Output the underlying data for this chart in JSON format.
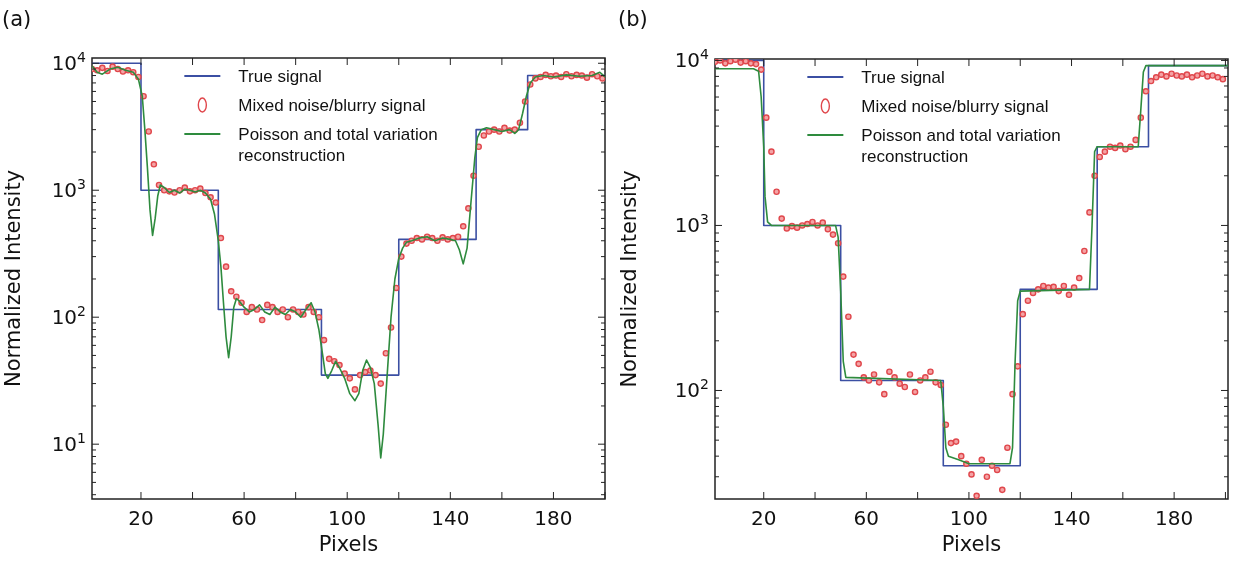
{
  "chart_data": [
    {
      "type": "line",
      "title": "(a)",
      "xlabel": "Pixels",
      "ylabel": "Normalized Intensity",
      "log": "y",
      "legend": "top",
      "grid": false,
      "xlim": [
        1,
        200
      ],
      "xticks": [
        20,
        {
          "value": 40,
          "label": null
        },
        60,
        {
          "value": 80,
          "label": null
        },
        100,
        {
          "value": 120,
          "label": null
        },
        140,
        {
          "value": 160,
          "label": null
        },
        180,
        {
          "value": 200,
          "label": null
        }
      ],
      "ylim": [
        3.7,
        11000
      ],
      "yticks": [
        {
          "value": 4,
          "label": null
        },
        {
          "value": 5,
          "label": null
        },
        {
          "value": 6,
          "label": null
        },
        {
          "value": 7,
          "label": null
        },
        {
          "value": 8,
          "label": null
        },
        {
          "value": 9,
          "label": null
        },
        {
          "value": 10,
          "label": "10$^{1}$"
        },
        {
          "value": 20,
          "label": null
        },
        {
          "value": 30,
          "label": null
        },
        {
          "value": 40,
          "label": null
        },
        {
          "value": 50,
          "label": null
        },
        {
          "value": 60,
          "label": null
        },
        {
          "value": 70,
          "label": null
        },
        {
          "value": 80,
          "label": null
        },
        {
          "value": 90,
          "label": null
        },
        {
          "value": 100,
          "label": "10$^{2}$"
        },
        {
          "value": 200,
          "label": null
        },
        {
          "value": 300,
          "label": null
        },
        {
          "value": 400,
          "label": null
        },
        {
          "value": 500,
          "label": null
        },
        {
          "value": 600,
          "label": null
        },
        {
          "value": 700,
          "label": null
        },
        {
          "value": 800,
          "label": null
        },
        {
          "value": 900,
          "label": null
        },
        {
          "value": 1000,
          "label": "10$^{3}$"
        },
        {
          "value": 2000,
          "label": null
        },
        {
          "value": 3000,
          "label": null
        },
        {
          "value": 4000,
          "label": null
        },
        {
          "value": 5000,
          "label": null
        },
        {
          "value": 6000,
          "label": null
        },
        {
          "value": 7000,
          "label": null
        },
        {
          "value": 8000,
          "label": null
        },
        {
          "value": 9000,
          "label": null
        },
        {
          "value": 10000,
          "label": "10$^{4}$"
        }
      ],
      "series": [
        {
          "name": "True signal",
          "type": "step",
          "color": "#3b4fa3",
          "line_style": "solid",
          "x": [
            1,
            20,
            50,
            90,
            120,
            150,
            170,
            200
          ],
          "values": [
            10000,
            1000,
            115,
            35,
            410,
            3000,
            8000,
            8000
          ]
        },
        {
          "name": "Mixed noise/blurry signal",
          "type": "scatter",
          "color": "#e0474c",
          "marker": "circle",
          "x": [
            1,
            3,
            5,
            7,
            9,
            11,
            13,
            15,
            17,
            19,
            21,
            23,
            25,
            27,
            29,
            31,
            33,
            35,
            37,
            39,
            41,
            43,
            45,
            47,
            49,
            51,
            53,
            55,
            57,
            59,
            61,
            63,
            65,
            67,
            69,
            71,
            73,
            75,
            77,
            79,
            81,
            83,
            85,
            87,
            89,
            91,
            93,
            95,
            97,
            99,
            101,
            103,
            105,
            107,
            109,
            111,
            113,
            115,
            117,
            119,
            121,
            123,
            125,
            127,
            129,
            131,
            133,
            135,
            137,
            139,
            141,
            143,
            145,
            147,
            149,
            151,
            153,
            155,
            157,
            159,
            161,
            163,
            165,
            167,
            169,
            171,
            173,
            175,
            177,
            179,
            181,
            183,
            185,
            187,
            189,
            191,
            193,
            195,
            197,
            199
          ],
          "values": [
            9000,
            8800,
            9200,
            8700,
            9400,
            9000,
            8600,
            8800,
            8500,
            7800,
            5500,
            2900,
            1600,
            1100,
            1000,
            980,
            960,
            1000,
            1050,
            980,
            1000,
            1030,
            950,
            880,
            800,
            420,
            250,
            160,
            145,
            130,
            110,
            120,
            115,
            95,
            125,
            120,
            110,
            115,
            100,
            115,
            110,
            105,
            120,
            110,
            100,
            66,
            47,
            45,
            42,
            36,
            33,
            27,
            35,
            37,
            38,
            35,
            30,
            52,
            83,
            170,
            300,
            380,
            400,
            420,
            410,
            430,
            420,
            400,
            425,
            410,
            420,
            430,
            520,
            720,
            1300,
            2200,
            2700,
            2900,
            3000,
            2900,
            3100,
            2950,
            3000,
            3400,
            5000,
            6800,
            7600,
            7800,
            8100,
            7900,
            8000,
            7800,
            8200,
            7900,
            8100,
            8000,
            7700,
            8200,
            7900,
            7600
          ]
        },
        {
          "name": "Poisson and total variation reconstruction",
          "type": "line",
          "color": "#2e8b3e",
          "line_style": "solid",
          "x": [
            1,
            3,
            5,
            8,
            11,
            14,
            17,
            19,
            20.5,
            21.5,
            22.5,
            23.5,
            24.5,
            25.5,
            26.5,
            27.5,
            29,
            31,
            33,
            35,
            37,
            39,
            41,
            43,
            45,
            47,
            48.5,
            50,
            51,
            52,
            53,
            54,
            55,
            56,
            57,
            58,
            60,
            62,
            64,
            66,
            68,
            70,
            72,
            74,
            76,
            78,
            80,
            82,
            84,
            86,
            87.5,
            89,
            90.5,
            91.5,
            92.5,
            94,
            95.5,
            97,
            99,
            101,
            103,
            104.5,
            106,
            107.5,
            109,
            110.5,
            112,
            113,
            114,
            115.5,
            117,
            118.5,
            120,
            121.5,
            123,
            125,
            128,
            131,
            134,
            137,
            140,
            142,
            143.5,
            145,
            146.5,
            148,
            149.5,
            150.5,
            152,
            154,
            157,
            160,
            163,
            165,
            166.5,
            168,
            169.5,
            171,
            173,
            176,
            180,
            185,
            190,
            195,
            198,
            200
          ],
          "values": [
            9500,
            8500,
            8200,
            9000,
            9300,
            8800,
            8500,
            7500,
            5500,
            3000,
            1500,
            700,
            440,
            600,
            900,
            1100,
            1050,
            960,
            1000,
            950,
            1020,
            1000,
            970,
            1000,
            950,
            850,
            650,
            400,
            250,
            130,
            70,
            48,
            70,
            120,
            140,
            135,
            120,
            110,
            115,
            125,
            110,
            105,
            120,
            110,
            105,
            115,
            110,
            100,
            115,
            130,
            110,
            80,
            50,
            36,
            33,
            38,
            45,
            40,
            33,
            25,
            22,
            25,
            38,
            46,
            40,
            30,
            14,
            7.8,
            12,
            35,
            100,
            200,
            290,
            350,
            390,
            400,
            420,
            430,
            400,
            420,
            410,
            400,
            340,
            263,
            350,
            800,
            1800,
            2600,
            3000,
            3100,
            3000,
            2900,
            3000,
            2800,
            3000,
            4000,
            5500,
            7000,
            7800,
            8000,
            7800,
            8100,
            7900,
            8000,
            8500,
            7800
          ]
        }
      ]
    },
    {
      "type": "line",
      "title": "(b)",
      "xlabel": "Pixels",
      "ylabel": "Normalized Intensity",
      "log": "y",
      "legend": "top",
      "grid": false,
      "xlim": [
        1,
        201
      ],
      "xticks": [
        20,
        {
          "value": 40,
          "label": null
        },
        60,
        {
          "value": 80,
          "label": null
        },
        100,
        {
          "value": 120,
          "label": null
        },
        140,
        {
          "value": 160,
          "label": null
        },
        180,
        {
          "value": 200,
          "label": null
        }
      ],
      "ylim": [
        22,
        10200
      ],
      "yticks": [
        {
          "value": 30,
          "label": null
        },
        {
          "value": 40,
          "label": null
        },
        {
          "value": 50,
          "label": null
        },
        {
          "value": 60,
          "label": null
        },
        {
          "value": 70,
          "label": null
        },
        {
          "value": 80,
          "label": null
        },
        {
          "value": 90,
          "label": null
        },
        {
          "value": 100,
          "label": "10$^{2}$"
        },
        {
          "value": 200,
          "label": null
        },
        {
          "value": 300,
          "label": null
        },
        {
          "value": 400,
          "label": null
        },
        {
          "value": 500,
          "label": null
        },
        {
          "value": 600,
          "label": null
        },
        {
          "value": 700,
          "label": null
        },
        {
          "value": 800,
          "label": null
        },
        {
          "value": 900,
          "label": null
        },
        {
          "value": 1000,
          "label": "10$^{3}$"
        },
        {
          "value": 2000,
          "label": null
        },
        {
          "value": 3000,
          "label": null
        },
        {
          "value": 4000,
          "label": null
        },
        {
          "value": 5000,
          "label": null
        },
        {
          "value": 6000,
          "label": null
        },
        {
          "value": 7000,
          "label": null
        },
        {
          "value": 8000,
          "label": null
        },
        {
          "value": 9000,
          "label": null
        },
        {
          "value": 10000,
          "label": "10$^{4}$"
        }
      ],
      "series": [
        {
          "name": "True signal",
          "type": "step",
          "color": "#3b4fa3",
          "line_style": "solid",
          "x": [
            1,
            20,
            50,
            90,
            120,
            150,
            170,
            201
          ],
          "values": [
            10000,
            1000,
            115,
            35,
            410,
            3000,
            9300,
            9300
          ]
        },
        {
          "name": "Mixed noise/blurry signal",
          "type": "scatter",
          "color": "#e0474c",
          "marker": "circle",
          "x": [
            1,
            3,
            5,
            7,
            9,
            11,
            13,
            15,
            17,
            19,
            21,
            23,
            25,
            27,
            29,
            31,
            33,
            35,
            37,
            39,
            41,
            43,
            45,
            47,
            49,
            51,
            53,
            55,
            57,
            59,
            61,
            63,
            65,
            67,
            69,
            71,
            73,
            75,
            77,
            79,
            81,
            83,
            85,
            87,
            89,
            91,
            93,
            95,
            97,
            99,
            101,
            103,
            105,
            107,
            109,
            111,
            113,
            115,
            117,
            119,
            121,
            123,
            125,
            127,
            129,
            131,
            133,
            135,
            137,
            139,
            141,
            143,
            145,
            147,
            149,
            151,
            153,
            155,
            157,
            159,
            161,
            163,
            165,
            167,
            169,
            171,
            173,
            175,
            177,
            179,
            181,
            183,
            185,
            187,
            189,
            191,
            193,
            195,
            197,
            199
          ],
          "values": [
            9800,
            10000,
            9600,
            9900,
            10100,
            9700,
            9900,
            9600,
            9500,
            8800,
            4500,
            2800,
            1600,
            1100,
            960,
            990,
            970,
            1000,
            1020,
            1050,
            1000,
            1040,
            950,
            880,
            780,
            490,
            280,
            165,
            145,
            120,
            115,
            125,
            112,
            95,
            130,
            120,
            110,
            105,
            125,
            98,
            115,
            120,
            130,
            112,
            108,
            62,
            48,
            49,
            40,
            36,
            31,
            23,
            38,
            30,
            35,
            33,
            25,
            45,
            95,
            140,
            290,
            350,
            390,
            410,
            430,
            420,
            425,
            400,
            430,
            380,
            420,
            480,
            700,
            1200,
            2000,
            2600,
            2800,
            3000,
            2950,
            3050,
            2900,
            3000,
            3300,
            4500,
            6500,
            7500,
            7900,
            8200,
            8000,
            8300,
            8100,
            8000,
            8200,
            7900,
            8100,
            8300,
            8000,
            8100,
            7900,
            7700
          ]
        },
        {
          "name": "Poisson and total variation reconstruction",
          "type": "line",
          "color": "#2e8b3e",
          "line_style": "solid",
          "x": [
            1,
            16,
            18,
            19,
            20,
            20.5,
            21.5,
            23,
            48,
            49,
            50,
            51,
            52,
            89,
            90,
            91,
            92,
            96,
            100,
            116,
            117,
            118,
            119,
            120,
            147,
            148,
            149,
            150,
            166,
            167,
            168,
            169,
            201
          ],
          "values": [
            8900,
            8900,
            8600,
            6000,
            3000,
            1500,
            1050,
            1000,
            1000,
            850,
            400,
            150,
            120,
            115,
            80,
            45,
            40,
            38,
            36,
            36,
            45,
            150,
            350,
            400,
            410,
            1000,
            2800,
            3000,
            3000,
            5000,
            8500,
            9300,
            9300
          ]
        }
      ]
    }
  ]
}
